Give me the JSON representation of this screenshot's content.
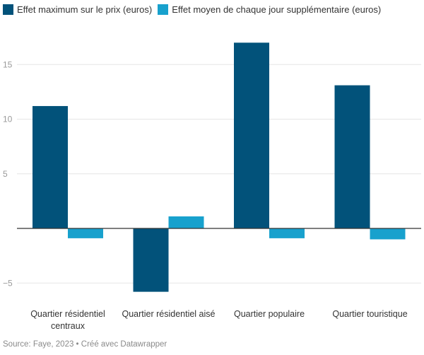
{
  "chart_data": {
    "type": "bar",
    "title": "",
    "xlabel": "",
    "ylabel": "",
    "categories": [
      [
        "Quartier résidentiel",
        "centraux"
      ],
      [
        "Quartier résidentiel aisé"
      ],
      [
        "Quartier populaire"
      ],
      [
        "Quartier touristique"
      ]
    ],
    "series": [
      {
        "name": "Effet maximum sur le prix (euros)",
        "color": "#02527a",
        "values": [
          11.2,
          -5.8,
          17.0,
          13.1
        ]
      },
      {
        "name": "Effet moyen de chaque jour supplémentaire (euros)",
        "color": "#18a1cd",
        "values": [
          -0.9,
          1.1,
          -0.9,
          -1.0
        ]
      }
    ],
    "yticks": [
      -5,
      5,
      10,
      15
    ],
    "ytick_labels": [
      "−5",
      "5",
      "10",
      "15"
    ],
    "ylim": [
      -6.5,
      19
    ],
    "grid": true,
    "legend_position": "top-left"
  },
  "footer": {
    "text": "Source: Faye, 2023 • Créé avec Datawrapper"
  }
}
